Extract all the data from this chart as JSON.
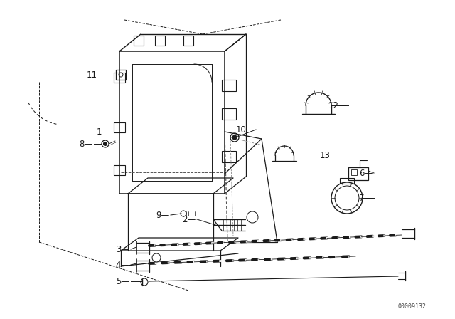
{
  "background_color": "#ffffff",
  "line_color": "#1a1a1a",
  "part_number": "00009132",
  "fig_width": 6.4,
  "fig_height": 4.48,
  "dpi": 100
}
